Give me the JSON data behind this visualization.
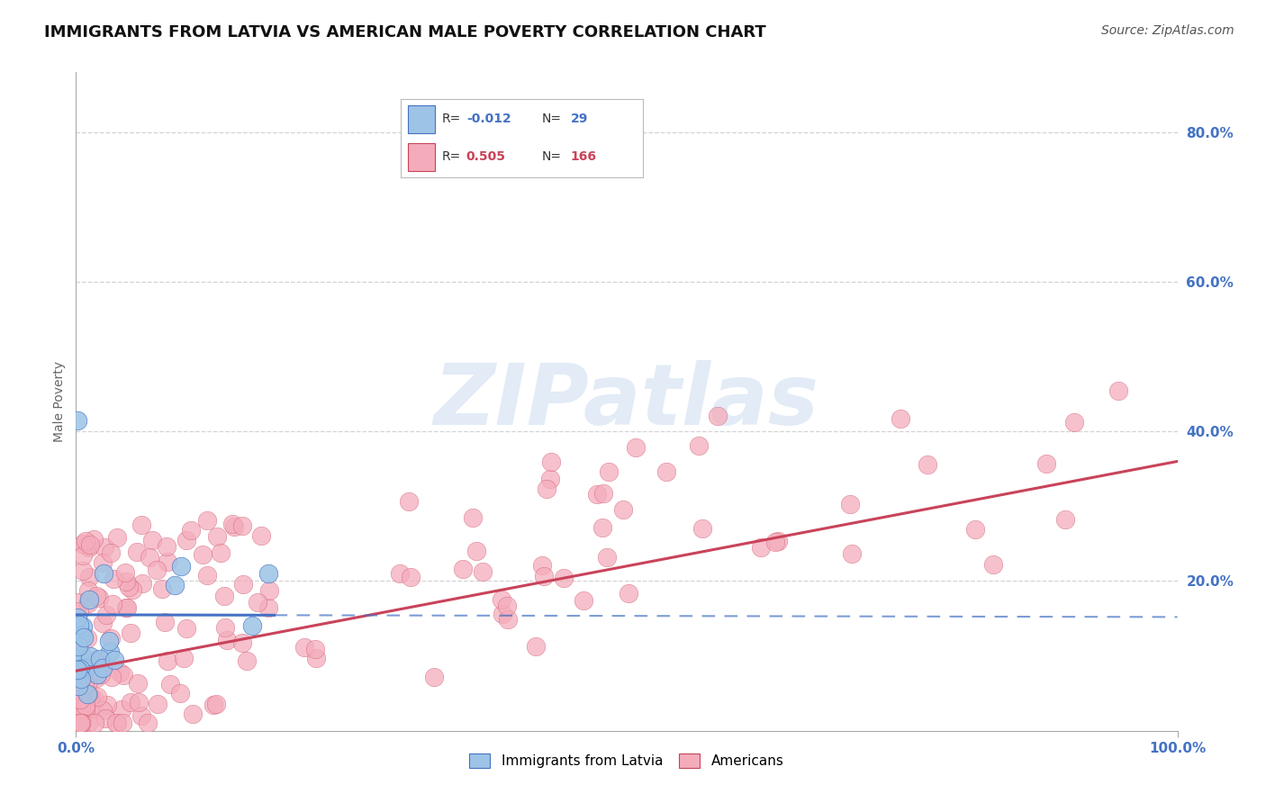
{
  "title": "IMMIGRANTS FROM LATVIA VS AMERICAN MALE POVERTY CORRELATION CHART",
  "source": "Source: ZipAtlas.com",
  "ylabel": "Male Poverty",
  "y_tick_values": [
    0.0,
    0.2,
    0.4,
    0.6,
    0.8
  ],
  "y_tick_labels": [
    "",
    "20.0%",
    "40.0%",
    "60.0%",
    "80.0%"
  ],
  "x_range": [
    0,
    1.0
  ],
  "y_range": [
    0.0,
    0.88
  ],
  "color_blue": "#9DC3E6",
  "color_blue_dark": "#4472C4",
  "color_pink": "#F4ACBB",
  "color_pink_dark": "#C9435A",
  "color_grid": "#C8C8C8",
  "title_fontsize": 13,
  "axis_label_fontsize": 10,
  "tick_fontsize": 11,
  "source_fontsize": 10,
  "background_color": "#FFFFFF",
  "watermark_color": "#D0DFF0",
  "watermark_alpha": 0.6,
  "legend_r1": "-0.012",
  "legend_n1": "29",
  "legend_r2": "0.505",
  "legend_n2": "166",
  "pink_intercept": 0.08,
  "pink_slope": 0.28,
  "blue_intercept": 0.155,
  "blue_slope": -0.003
}
